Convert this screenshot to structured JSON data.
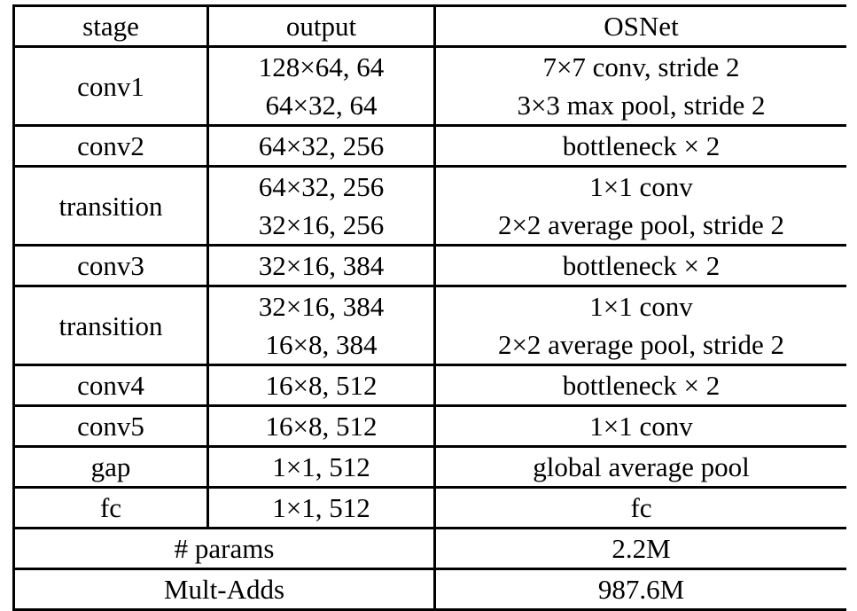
{
  "table": {
    "headers": [
      "stage",
      "output",
      "OSNet"
    ],
    "rows": [
      {
        "stage": "conv1",
        "output": [
          "128×64, 64",
          "64×32, 64"
        ],
        "osnet": [
          "7×7 conv, stride 2",
          "3×3 max pool, stride 2"
        ]
      },
      {
        "stage": "conv2",
        "output": [
          "64×32, 256"
        ],
        "osnet": [
          "bottleneck × 2"
        ]
      },
      {
        "stage": "transition",
        "output": [
          "64×32, 256",
          "32×16, 256"
        ],
        "osnet": [
          "1×1 conv",
          "2×2 average pool, stride 2"
        ]
      },
      {
        "stage": "conv3",
        "output": [
          "32×16, 384"
        ],
        "osnet": [
          "bottleneck × 2"
        ]
      },
      {
        "stage": "transition",
        "output": [
          "32×16, 384",
          "16×8, 384"
        ],
        "osnet": [
          "1×1 conv",
          "2×2 average pool, stride 2"
        ]
      },
      {
        "stage": "conv4",
        "output": [
          "16×8, 512"
        ],
        "osnet": [
          "bottleneck × 2"
        ]
      },
      {
        "stage": "conv5",
        "output": [
          "16×8, 512"
        ],
        "osnet": [
          "1×1 conv"
        ]
      },
      {
        "stage": "gap",
        "output": [
          "1×1, 512"
        ],
        "osnet": [
          "global average pool"
        ]
      },
      {
        "stage": "fc",
        "output": [
          "1×1, 512"
        ],
        "osnet": [
          "fc"
        ]
      }
    ],
    "summary": [
      {
        "label": "# params",
        "value": "2.2M"
      },
      {
        "label": "Mult-Adds",
        "value": "987.6M"
      }
    ]
  }
}
